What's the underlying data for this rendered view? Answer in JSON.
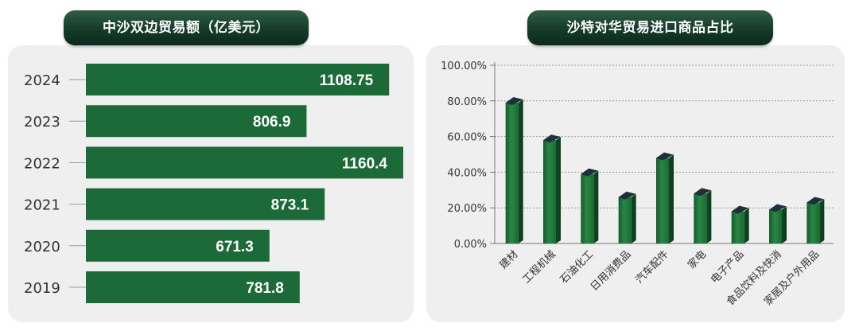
{
  "colors": {
    "bar": "#1c6a37",
    "title_bg": "#163b2a",
    "panel_bg": "#efefef",
    "axis": "#9a9a9a",
    "text": "#333333"
  },
  "left_chart": {
    "title": "中沙双边贸易额（亿美元）"
  },
  "right_chart": {
    "title": "沙特对华贸易进口商品占比"
  },
  "chart_data": [
    {
      "type": "bar",
      "orientation": "horizontal",
      "title": "中沙双边贸易额（亿美元）",
      "categories": [
        "2024",
        "2023",
        "2022",
        "2021",
        "2020",
        "2019"
      ],
      "values": [
        1108.75,
        806.9,
        1160.4,
        873.1,
        671.3,
        781.8
      ],
      "value_labels": [
        "1108.75",
        "806.9",
        "1160.4",
        "873.1",
        "671.3",
        "781.8"
      ],
      "xlim": [
        0,
        1160.4
      ],
      "grid": false,
      "legend": "none"
    },
    {
      "type": "bar",
      "orientation": "vertical",
      "style": "3d-column",
      "title": "沙特对华贸易进口商品占比",
      "categories": [
        "建材",
        "工程机械",
        "石油化工",
        "日用消费品",
        "汽车配件",
        "家电",
        "电子产品",
        "食品饮料及快消",
        "家居及户外用品"
      ],
      "values": [
        79,
        58,
        39,
        26,
        48,
        28,
        18,
        19,
        23
      ],
      "ylim": [
        0,
        100
      ],
      "y_ticks": [
        "0.00%",
        "20.00%",
        "40.00%",
        "60.00%",
        "80.00%",
        "100.00%"
      ],
      "grid": true,
      "legend": "none"
    }
  ]
}
